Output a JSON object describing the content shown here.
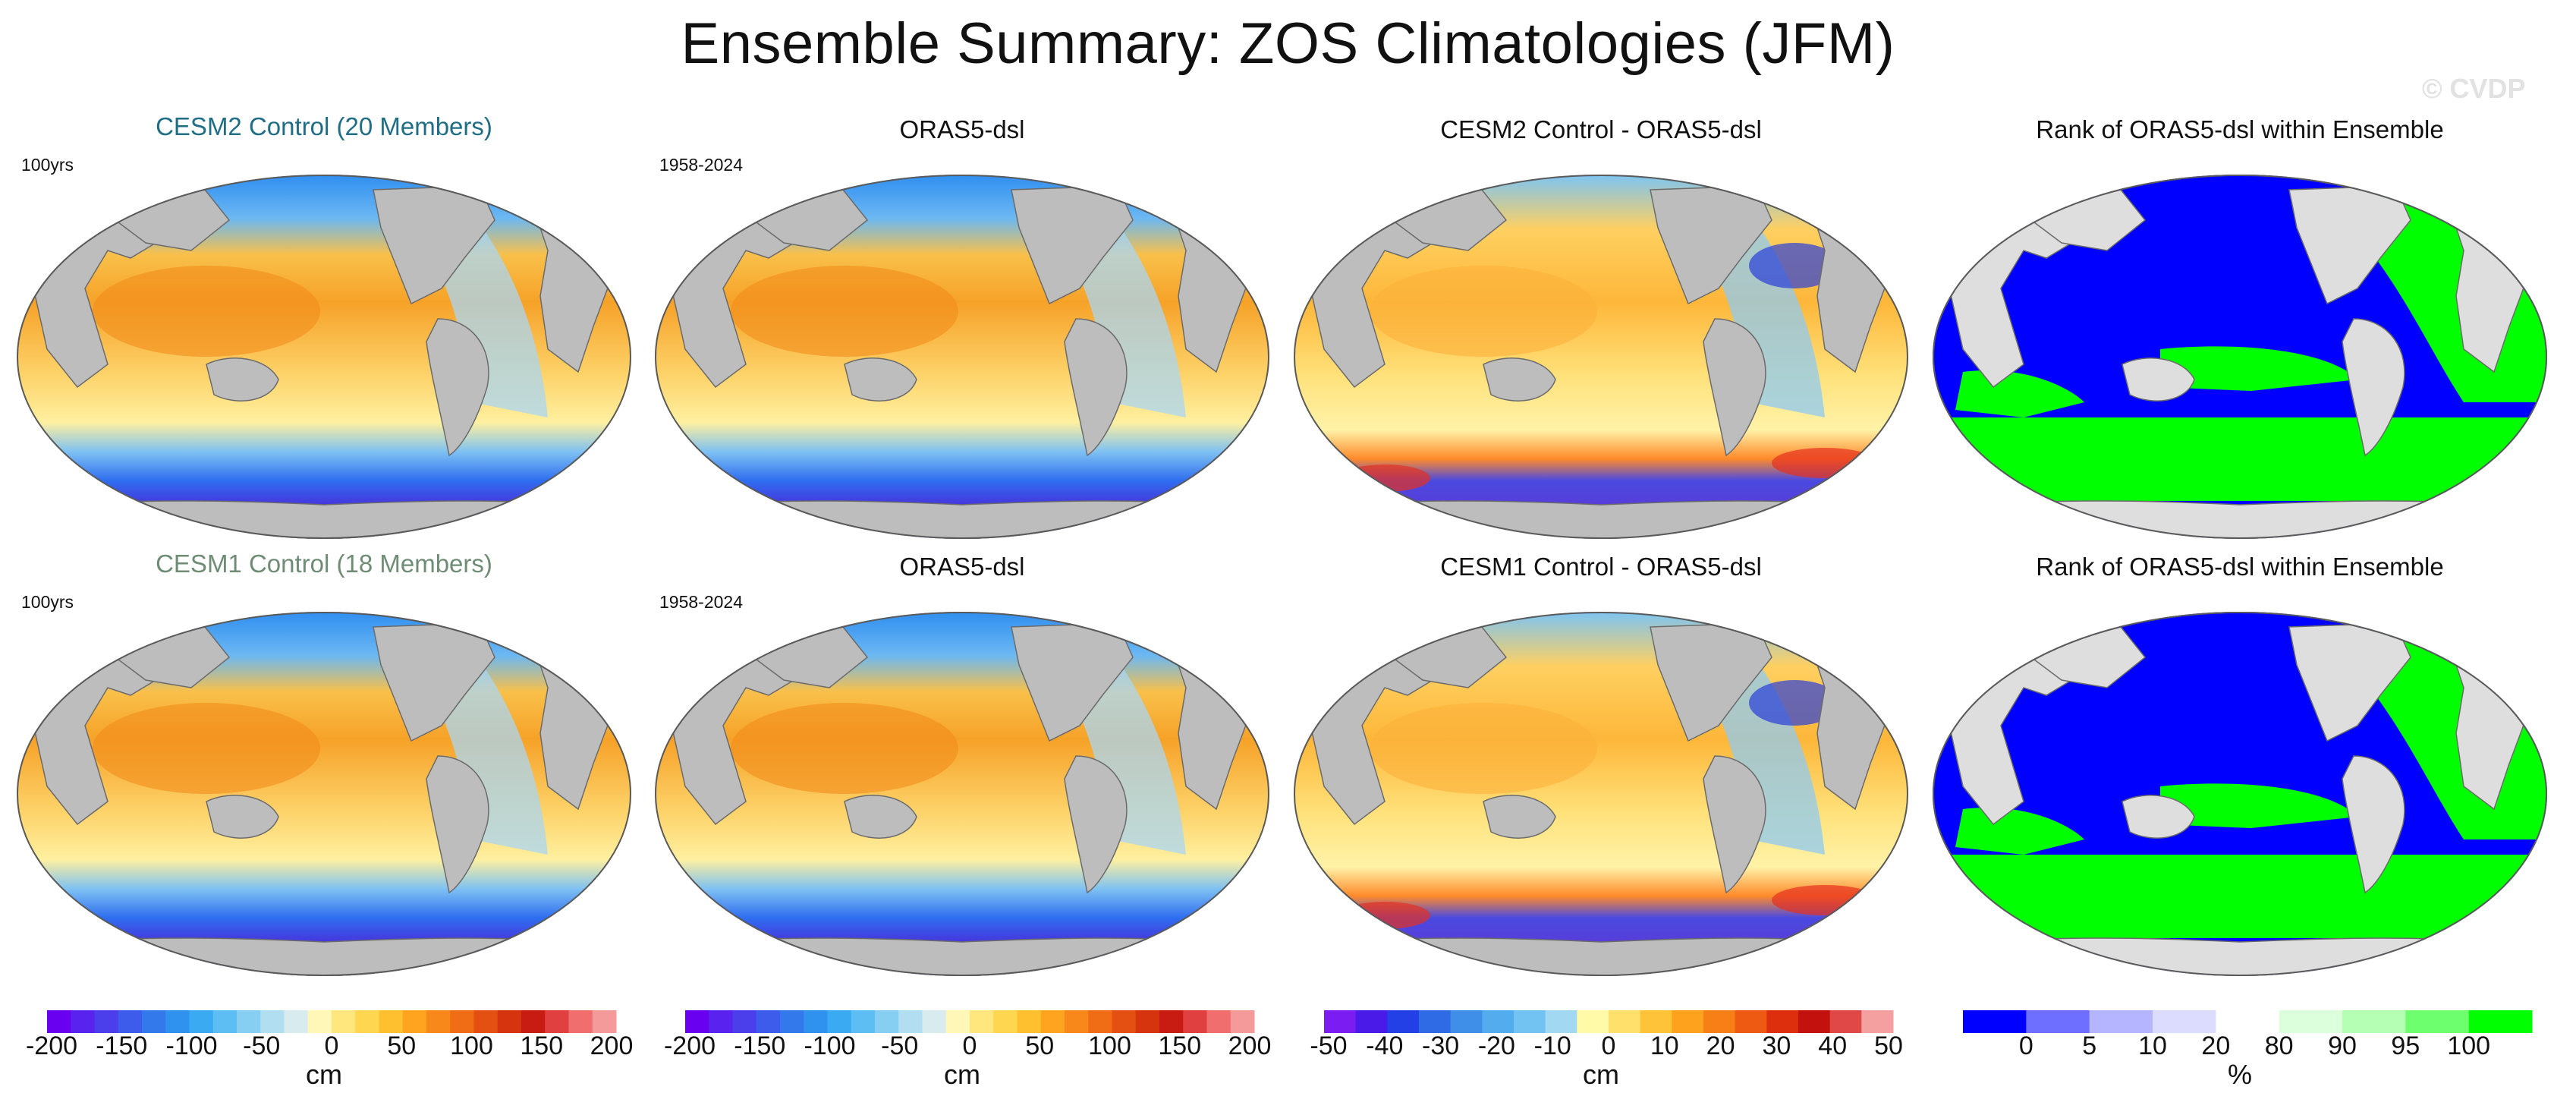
{
  "title": "Ensemble Summary: ZOS Climatologies (JFM)",
  "watermark": "© CVDP",
  "colors": {
    "land": "#bdbdbd",
    "land_rank": "#dedede",
    "sea_yellow": "#fff3a0",
    "sea_orange": "#f7a21a",
    "sea_blue": "#3d9be8",
    "sea_deep": "#3a2bd6",
    "rank_blue": "#0000ff",
    "rank_green": "#00ff00",
    "title_teal": "#1f6e86",
    "title_sage": "#6f8c74"
  },
  "rows": [
    {
      "panels": [
        {
          "title": "CESM2 Control (20 Members)",
          "period": "100yrs",
          "kind": "field",
          "title_color": "teal"
        },
        {
          "title": "ORAS5-dsl",
          "period": "1958-2024",
          "kind": "field",
          "title_color": "black"
        },
        {
          "title": "CESM2 Control - ORAS5-dsl",
          "period": "",
          "kind": "diff",
          "title_color": "black"
        },
        {
          "title": "Rank of ORAS5-dsl within Ensemble",
          "period": "",
          "kind": "rank",
          "title_color": "black"
        }
      ]
    },
    {
      "panels": [
        {
          "title": "CESM1 Control (18 Members)",
          "period": "100yrs",
          "kind": "field",
          "title_color": "sage"
        },
        {
          "title": "ORAS5-dsl",
          "period": "1958-2024",
          "kind": "field",
          "title_color": "black"
        },
        {
          "title": "CESM1 Control - ORAS5-dsl",
          "period": "",
          "kind": "diff",
          "title_color": "black"
        },
        {
          "title": "Rank of ORAS5-dsl within Ensemble",
          "period": "",
          "kind": "rank",
          "title_color": "black"
        }
      ]
    }
  ],
  "colorbars": [
    {
      "unit": "cm",
      "labels": [
        "-200",
        "-150",
        "-100",
        "-50",
        "0",
        "50",
        "100",
        "150",
        "200"
      ],
      "colors": [
        "#6a00f0",
        "#5a22ee",
        "#4b3fec",
        "#3d5ceb",
        "#3379ec",
        "#2f92ef",
        "#3aaaf2",
        "#5cbef3",
        "#86cff2",
        "#b1dff1",
        "#d8ecf0",
        "#fff7b8",
        "#ffe77e",
        "#ffd64f",
        "#ffc02f",
        "#fea41f",
        "#f88819",
        "#f06c15",
        "#e44f12",
        "#d6340f",
        "#c81c13",
        "#e04040",
        "#f06e6e",
        "#f49a9a"
      ]
    },
    {
      "unit": "cm",
      "labels": [
        "-200",
        "-150",
        "-100",
        "-50",
        "0",
        "50",
        "100",
        "150",
        "200"
      ],
      "colors": [
        "#6a00f0",
        "#5a22ee",
        "#4b3fec",
        "#3d5ceb",
        "#3379ec",
        "#2f92ef",
        "#3aaaf2",
        "#5cbef3",
        "#86cff2",
        "#b1dff1",
        "#d8ecf0",
        "#fff7b8",
        "#ffe77e",
        "#ffd64f",
        "#ffc02f",
        "#fea41f",
        "#f88819",
        "#f06c15",
        "#e44f12",
        "#d6340f",
        "#c81c13",
        "#e04040",
        "#f06e6e",
        "#f49a9a"
      ]
    },
    {
      "unit": "cm",
      "labels": [
        "-50",
        "-40",
        "-30",
        "-20",
        "-10",
        "0",
        "10",
        "20",
        "30",
        "40",
        "50"
      ],
      "colors": [
        "#7a1cf2",
        "#4a1ae8",
        "#2240e6",
        "#2f6be4",
        "#3f8fe8",
        "#52acee",
        "#73c3f2",
        "#a3d8f3",
        "#fffaa8",
        "#ffe06a",
        "#ffc33a",
        "#fea11d",
        "#f77f16",
        "#ee5a12",
        "#dd2f0e",
        "#c3110e",
        "#e04848",
        "#f4a0a0"
      ]
    },
    {
      "unit": "%",
      "labels": [
        "0",
        "5",
        "10",
        "20",
        "80",
        "90",
        "95",
        "100"
      ],
      "colors": [
        "#0000ff",
        "#6e6eff",
        "#b4b4ff",
        "#dcdcff",
        "#ffffff",
        "#dcffdc",
        "#b4ffb4",
        "#6eff6e",
        "#00ff00"
      ]
    }
  ]
}
